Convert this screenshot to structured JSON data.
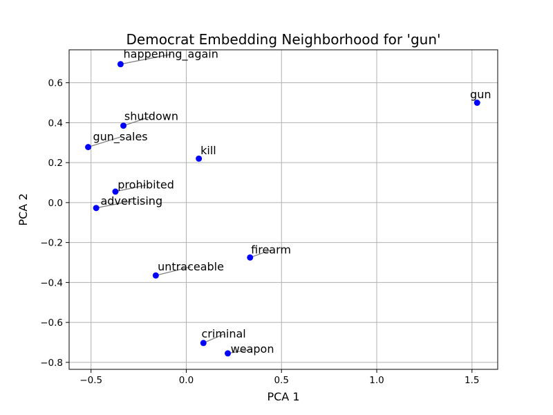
{
  "chart_data": {
    "type": "scatter",
    "title": "Democrat Embedding Neighborhood for 'gun'",
    "xlabel": "PCA 1",
    "ylabel": "PCA 2",
    "xlim": [
      -0.615,
      1.635
    ],
    "ylim": [
      -0.835,
      0.765
    ],
    "x_ticks": [
      -0.5,
      0.0,
      0.5,
      1.0,
      1.5
    ],
    "x_tick_labels": [
      "−0.5",
      "0.0",
      "0.5",
      "1.0",
      "1.5"
    ],
    "y_ticks": [
      -0.8,
      -0.6,
      -0.4,
      -0.2,
      0.0,
      0.2,
      0.4,
      0.6
    ],
    "y_tick_labels": [
      "−0.8",
      "−0.6",
      "−0.4",
      "−0.2",
      "0.0",
      "0.2",
      "0.4",
      "0.6"
    ],
    "grid": true,
    "point_color": "#0000ff",
    "connector_color": "#808080",
    "points": [
      {
        "label": "happening_again",
        "x": -0.345,
        "y": 0.693,
        "label_x": -0.33,
        "label_y": 0.725
      },
      {
        "label": "gun",
        "x": 1.527,
        "y": 0.5,
        "label_x": 1.49,
        "label_y": 0.523
      },
      {
        "label": "shutdown",
        "x": -0.33,
        "y": 0.385,
        "label_x": -0.325,
        "label_y": 0.414
      },
      {
        "label": "gun_sales",
        "x": -0.515,
        "y": 0.278,
        "label_x": -0.49,
        "label_y": 0.311
      },
      {
        "label": "kill",
        "x": 0.066,
        "y": 0.22,
        "label_x": 0.075,
        "label_y": 0.242
      },
      {
        "label": "prohibited",
        "x": -0.372,
        "y": 0.055,
        "label_x": -0.36,
        "label_y": 0.07
      },
      {
        "label": "advertising",
        "x": -0.473,
        "y": -0.027,
        "label_x": -0.45,
        "label_y": -0.01
      },
      {
        "label": "firearm",
        "x": 0.335,
        "y": -0.275,
        "label_x": 0.34,
        "label_y": -0.255
      },
      {
        "label": "untraceable",
        "x": -0.16,
        "y": -0.365,
        "label_x": -0.15,
        "label_y": -0.339
      },
      {
        "label": "criminal",
        "x": 0.09,
        "y": -0.703,
        "label_x": 0.08,
        "label_y": -0.676
      },
      {
        "label": "weapon",
        "x": 0.218,
        "y": -0.755,
        "label_x": 0.233,
        "label_y": -0.752
      }
    ]
  }
}
